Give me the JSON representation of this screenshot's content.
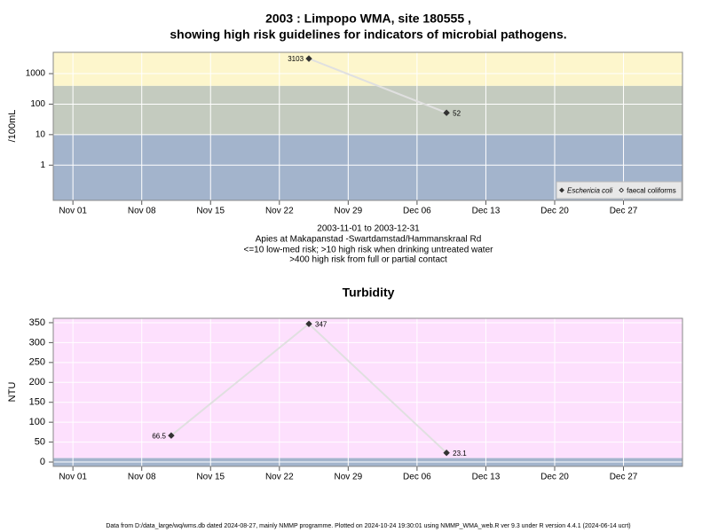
{
  "chart_data": [
    {
      "type": "line",
      "title": [
        "2003 : Limpopo WMA, site 180555 ,",
        "showing high risk guidelines for indicators of microbial pathogens."
      ],
      "xlabel": [
        "2003-11-01 to 2003-12-31",
        "Apies at Makapanstad -Swartdamstad/Hammanskraal Rd",
        "<=10 low-med risk; >10 high risk when drinking untreated water",
        ">400 high risk from full or partial contact"
      ],
      "ylabel": "/100mL",
      "log_scale": true,
      "ylim": [
        0.07,
        5000
      ],
      "yticks": [
        1,
        10,
        100,
        1000
      ],
      "xlim": [
        "2003-10-30",
        "2004-01-02"
      ],
      "xticks": [
        {
          "value": "2003-11-01",
          "label": "Nov 01"
        },
        {
          "value": "2003-11-08",
          "label": "Nov 08"
        },
        {
          "value": "2003-11-15",
          "label": "Nov 15"
        },
        {
          "value": "2003-11-22",
          "label": "Nov 22"
        },
        {
          "value": "2003-11-29",
          "label": "Nov 29"
        },
        {
          "value": "2003-12-06",
          "label": "Dec 06"
        },
        {
          "value": "2003-12-13",
          "label": "Dec 13"
        },
        {
          "value": "2003-12-20",
          "label": "Dec 20"
        },
        {
          "value": "2003-12-27",
          "label": "Dec 27"
        }
      ],
      "grid": true,
      "thresholds": [
        10,
        400
      ],
      "band_colors": [
        "#a3b4cc",
        "#c4cbbf",
        "#fdf6cc"
      ],
      "legend": "lower right",
      "series": [
        {
          "name": "Eschericia coli",
          "color": "#e0e0e0",
          "marker": "filled",
          "x": [
            "2003-11-25",
            "2003-12-09"
          ],
          "values": [
            3103,
            52
          ]
        },
        {
          "name": "faecal coliforms",
          "color": "#e0e0e0",
          "marker": "open",
          "x": [],
          "values": []
        }
      ]
    },
    {
      "type": "line",
      "title": "Turbidity",
      "ylabel": "NTU",
      "log_scale": false,
      "ylim": [
        -11,
        361
      ],
      "yticks": [
        0,
        50,
        100,
        150,
        200,
        250,
        300,
        350
      ],
      "xlim": [
        "2003-10-30",
        "2004-01-02"
      ],
      "xticks": [
        {
          "value": "2003-11-01",
          "label": "Nov 01"
        },
        {
          "value": "2003-11-08",
          "label": "Nov 08"
        },
        {
          "value": "2003-11-15",
          "label": "Nov 15"
        },
        {
          "value": "2003-11-22",
          "label": "Nov 22"
        },
        {
          "value": "2003-11-29",
          "label": "Nov 29"
        },
        {
          "value": "2003-12-06",
          "label": "Dec 06"
        },
        {
          "value": "2003-12-13",
          "label": "Dec 13"
        },
        {
          "value": "2003-12-20",
          "label": "Dec 20"
        },
        {
          "value": "2003-12-27",
          "label": "Dec 27"
        }
      ],
      "grid": true,
      "thresholds": [
        10
      ],
      "band_colors": [
        "#a3b4cc",
        "#fde0fd"
      ],
      "series": [
        {
          "name": "Turbidity",
          "color": "#e0e0e0",
          "marker": "filled",
          "x": [
            "2003-11-11",
            "2003-11-25",
            "2003-12-09"
          ],
          "values": [
            66.5,
            347,
            23.1
          ]
        }
      ]
    }
  ],
  "footer": "Data from D:/data_large/wq/wms.db dated 2024-08-27, mainly NMMP programme. Plotted on 2024-10-24 19:30:01 using NMMP_WMA_web.R ver 9.3 under R version 4.4.1 (2024-06-14 ucrt)"
}
